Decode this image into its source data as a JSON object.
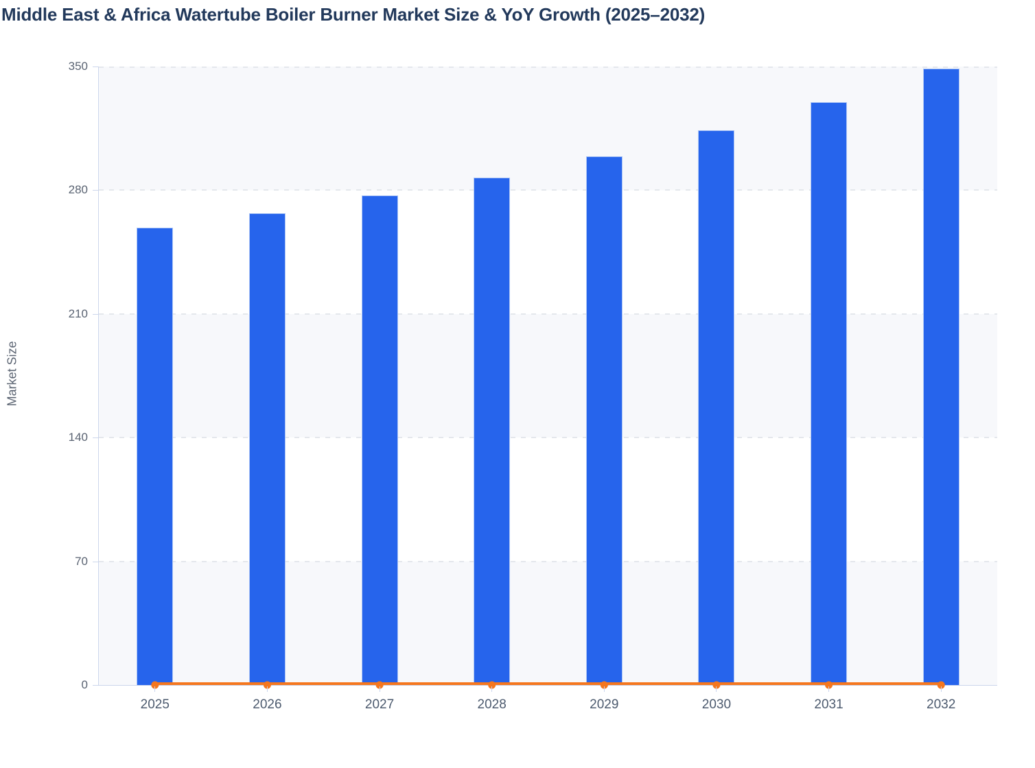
{
  "chart_data": {
    "type": "bar",
    "secondary_type": "line",
    "title": "Middle East & Africa Watertube Boiler Burner Market Size & YoY Growth (2025–2032)",
    "xlabel": "",
    "ylabel": "Market Size",
    "categories": [
      "2025",
      "2026",
      "2027",
      "2028",
      "2029",
      "2030",
      "2031",
      "2032"
    ],
    "series": [
      {
        "name": "Market Size",
        "type": "bar",
        "color": "#2664EC",
        "values": [
          259,
          267,
          277,
          287,
          299,
          314,
          330,
          349
        ]
      },
      {
        "name": "YoY Growth",
        "type": "line",
        "color": "#F5771E",
        "values": [
          0,
          0,
          0,
          0,
          0,
          0,
          0,
          0
        ],
        "note": "line and markers render flat along the zero baseline of the left axis"
      }
    ],
    "ylim": [
      0,
      350
    ],
    "y_ticks": [
      0,
      70,
      140,
      210,
      280,
      350
    ],
    "legend": "none",
    "grid": "horizontal dashed gridlines with alternating background bands",
    "plot_band_colors": [
      "#F7F8FB",
      "#FFFFFF"
    ],
    "axis_color": "#CCD6EC",
    "gridline_color": "#E4E7EC",
    "tick_label_color": "#5A6372",
    "x_label_color": "#4C5A6E",
    "title_color": "#22395B"
  }
}
